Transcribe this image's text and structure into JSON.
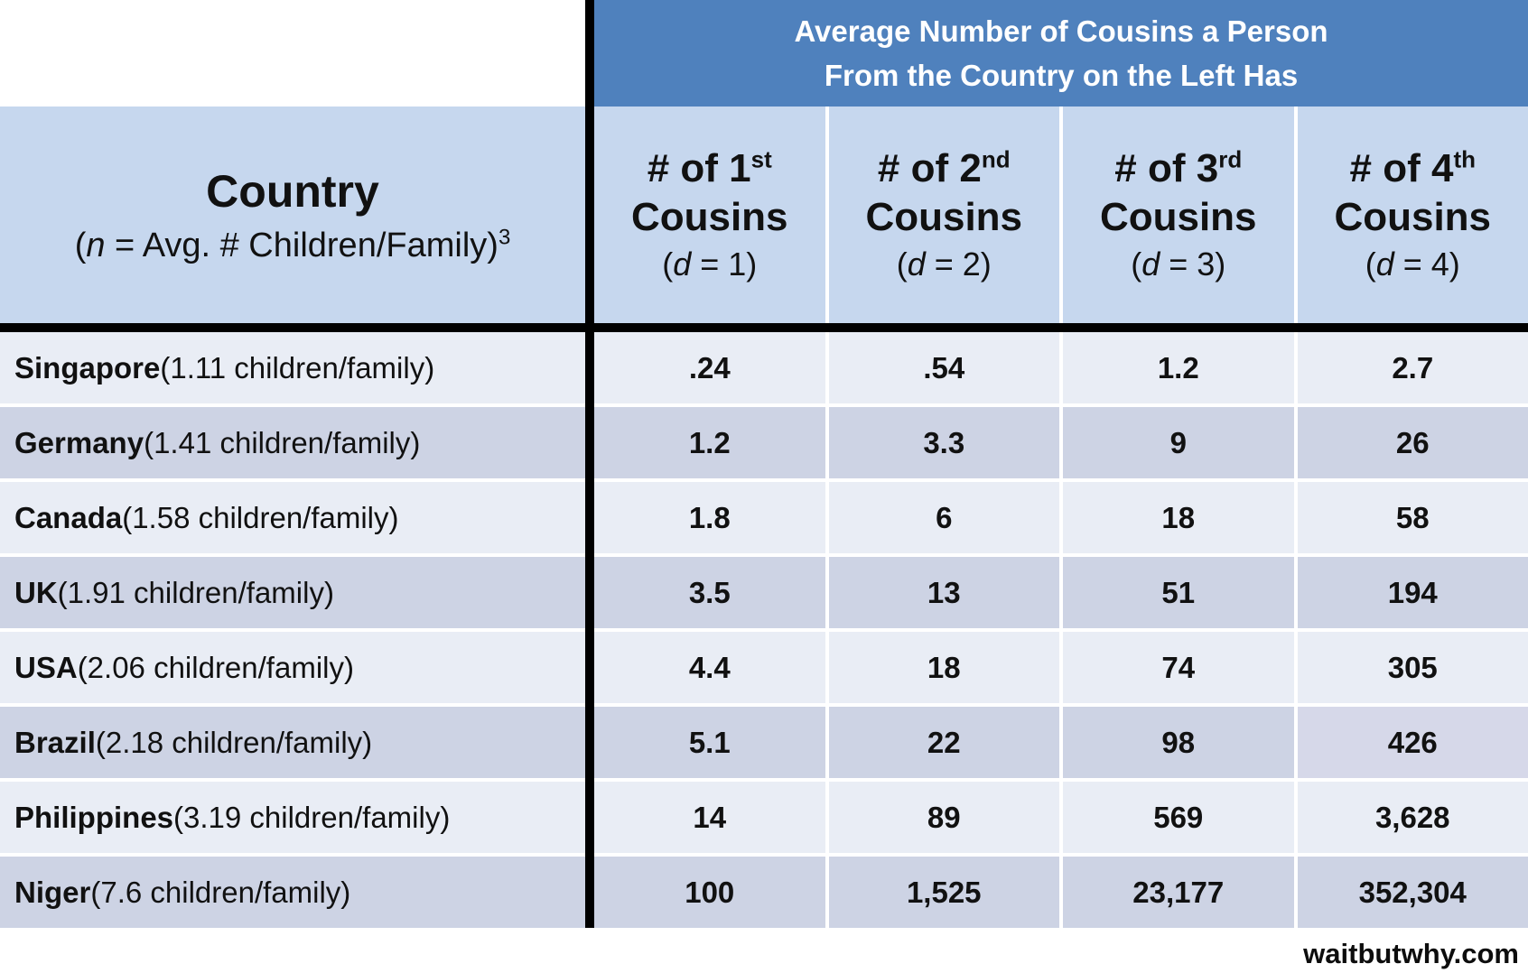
{
  "banner": {
    "line1": "Average Number of Cousins a Person",
    "line2": "From the Country on the Left Has"
  },
  "country_header": {
    "title": "Country",
    "sub_open": "(",
    "sub_var": "n",
    "sub_rest": " = Avg. # Children/Family)",
    "sub_sup": "3"
  },
  "column_headers": [
    {
      "base": "# of 1",
      "sup": "st",
      "word": "Cousins",
      "p_open": "(",
      "p_var": "d",
      "p_rest": " = 1)"
    },
    {
      "base": "# of 2",
      "sup": "nd",
      "word": "Cousins",
      "p_open": "(",
      "p_var": "d",
      "p_rest": " = 2)"
    },
    {
      "base": "# of 3",
      "sup": "rd",
      "word": "Cousins",
      "p_open": "(",
      "p_var": "d",
      "p_rest": " = 3)"
    },
    {
      "base": "# of 4",
      "sup": "th",
      "word": "Cousins",
      "p_open": "(",
      "p_var": "d",
      "p_rest": " = 4)"
    }
  ],
  "rows": [
    {
      "country": "Singapore",
      "detail": " (1.11 children/family)",
      "values": [
        ".24",
        ".54",
        "1.2",
        "2.7"
      ]
    },
    {
      "country": "Germany",
      "detail": " (1.41 children/family)",
      "values": [
        "1.2",
        "3.3",
        "9",
        "26"
      ]
    },
    {
      "country": "Canada",
      "detail": " (1.58 children/family)",
      "values": [
        "1.8",
        "6",
        "18",
        "58"
      ]
    },
    {
      "country": "UK",
      "detail": " (1.91 children/family)",
      "values": [
        "3.5",
        "13",
        "51",
        "194"
      ]
    },
    {
      "country": "USA",
      "detail": " (2.06 children/family)",
      "values": [
        "4.4",
        "18",
        "74",
        "305"
      ]
    },
    {
      "country": "Brazil",
      "detail": " (2.18 children/family)",
      "values": [
        "5.1",
        "22",
        "98",
        "426"
      ]
    },
    {
      "country": "Philippines",
      "detail": " (3.19 children/family)",
      "values": [
        "14",
        "89",
        "569",
        "3,628"
      ]
    },
    {
      "country": "Niger",
      "detail": " (7.6 children/family)",
      "values": [
        "100",
        "1,525",
        "23,177",
        "352,304"
      ]
    }
  ],
  "footer": {
    "site": "waitbutwhy.com"
  },
  "colors": {
    "banner_blue": "#4F81BD",
    "header_blue": "#C6D7EE",
    "row_light": "#E9EDF5",
    "row_dark": "#CDD3E4",
    "line_black": "#000000",
    "text_dark": "#111111"
  },
  "chart_data": {
    "type": "table",
    "title": "Average Number of Cousins a Person From the Country on the Left Has",
    "row_header": "Country (n = Avg. # Children/Family)^3",
    "columns": [
      "# of 1st Cousins (d = 1)",
      "# of 2nd Cousins (d = 2)",
      "# of 3rd Cousins (d = 3)",
      "# of 4th Cousins (d = 4)"
    ],
    "rows": [
      {
        "country": "Singapore",
        "children_per_family": 1.11,
        "cousins": [
          0.24,
          0.54,
          1.2,
          2.7
        ]
      },
      {
        "country": "Germany",
        "children_per_family": 1.41,
        "cousins": [
          1.2,
          3.3,
          9,
          26
        ]
      },
      {
        "country": "Canada",
        "children_per_family": 1.58,
        "cousins": [
          1.8,
          6,
          18,
          58
        ]
      },
      {
        "country": "UK",
        "children_per_family": 1.91,
        "cousins": [
          3.5,
          13,
          51,
          194
        ]
      },
      {
        "country": "USA",
        "children_per_family": 2.06,
        "cousins": [
          4.4,
          18,
          74,
          305
        ]
      },
      {
        "country": "Brazil",
        "children_per_family": 2.18,
        "cousins": [
          5.1,
          22,
          98,
          426
        ]
      },
      {
        "country": "Philippines",
        "children_per_family": 3.19,
        "cousins": [
          14,
          89,
          569,
          3628
        ]
      },
      {
        "country": "Niger",
        "children_per_family": 7.6,
        "cousins": [
          100,
          1525,
          23177,
          352304
        ]
      }
    ],
    "source": "waitbutwhy.com"
  }
}
